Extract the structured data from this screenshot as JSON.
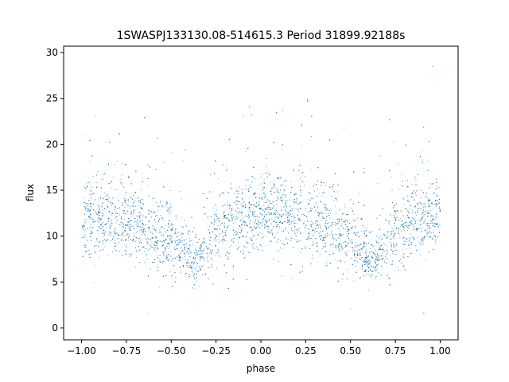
{
  "chart_data": {
    "type": "scatter",
    "title": "1SWASPJ133130.08-514615.3 Period 31899.92188s",
    "xlabel": "phase",
    "ylabel": "flux",
    "xlim": [
      -1.1,
      1.1
    ],
    "ylim": [
      -1.3,
      30.7
    ],
    "x_ticks": [
      -1.0,
      -0.75,
      -0.5,
      -0.25,
      0.0,
      0.25,
      0.5,
      0.75,
      1.0
    ],
    "x_tick_labels": [
      "−1.00",
      "−0.75",
      "−0.50",
      "−0.25",
      "0.00",
      "0.25",
      "0.50",
      "0.75",
      "1.00"
    ],
    "y_ticks": [
      0,
      5,
      10,
      15,
      20,
      25,
      30
    ],
    "y_tick_labels": [
      "0",
      "5",
      "10",
      "15",
      "20",
      "25",
      "30"
    ],
    "grid": false,
    "legend": "none",
    "marker_color": "#1f77b4",
    "series": [
      {
        "x_range": [
          -1.0,
          1.0
        ],
        "light_curve_profile": [
          {
            "phase": -1.0,
            "flux": 11.5
          },
          {
            "phase": -0.75,
            "flux": 12.0
          },
          {
            "phase": -0.5,
            "flux": 9.5
          },
          {
            "phase": -0.37,
            "flux": 7.0
          },
          {
            "phase": -0.25,
            "flux": 10.5
          },
          {
            "phase": 0.0,
            "flux": 12.8
          },
          {
            "phase": 0.25,
            "flux": 12.0
          },
          {
            "phase": 0.5,
            "flux": 9.5
          },
          {
            "phase": 0.63,
            "flux": 7.0
          },
          {
            "phase": 0.75,
            "flux": 10.5
          },
          {
            "phase": 1.0,
            "flux": 12.5
          }
        ],
        "flux_ceiling": 28.8,
        "flux_floor": 0.0
      }
    ]
  }
}
